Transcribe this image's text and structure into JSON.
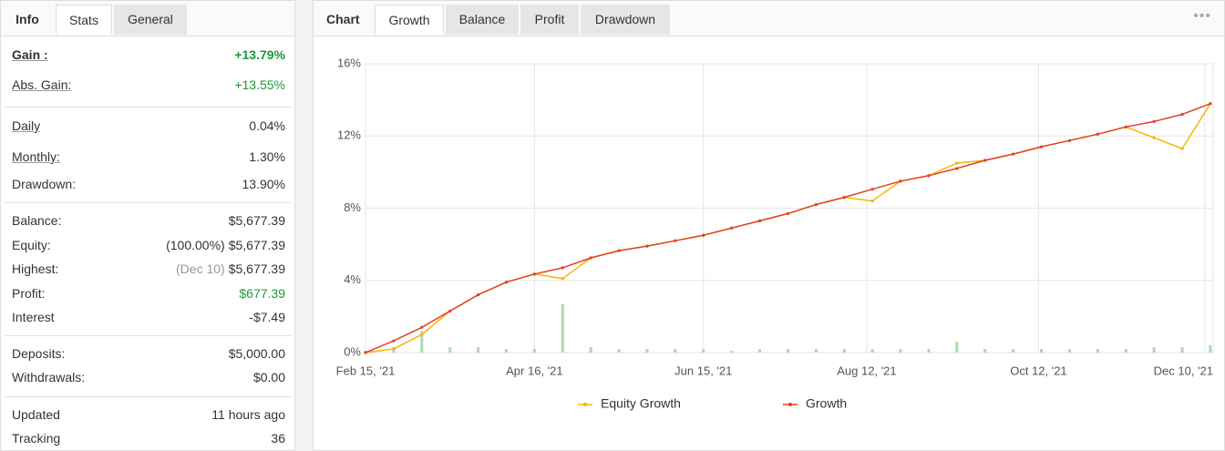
{
  "left_panel": {
    "tabs": [
      "Info",
      "Stats",
      "General"
    ],
    "active_tab": 1,
    "groups": [
      [
        {
          "label": "Gain :",
          "value": "+13.79%",
          "value_color": "#1a9a3a",
          "bold": true,
          "underlined": true
        },
        {
          "label": "Abs. Gain:",
          "value": "+13.55%",
          "value_color": "#1a9a3a",
          "underlined": true
        }
      ],
      [
        {
          "label": "Daily",
          "value": "0.04%",
          "underlined": true
        },
        {
          "label": "Monthly:",
          "value": "1.30%",
          "underlined": true
        },
        {
          "label": "Drawdown:",
          "value": "13.90%"
        }
      ],
      [
        {
          "label": "Balance:",
          "value": "$5,677.39"
        },
        {
          "label": "Equity:",
          "note": "(100.00%)",
          "value": "$5,677.39"
        },
        {
          "label": "Highest:",
          "note": "(Dec 10)",
          "note_color": "#999999",
          "value": "$5,677.39"
        },
        {
          "label": "Profit:",
          "value": "$677.39",
          "value_color": "#1a9a3a"
        },
        {
          "label": "Interest",
          "value": "-$7.49"
        }
      ],
      [
        {
          "label": "Deposits:",
          "value": "$5,000.00"
        },
        {
          "label": "Withdrawals:",
          "value": "$0.00"
        }
      ],
      [
        {
          "label": "Updated",
          "value": "11 hours ago"
        },
        {
          "label": "Tracking",
          "value": "36"
        }
      ]
    ]
  },
  "chart_panel": {
    "title": "Chart",
    "tabs": [
      "Growth",
      "Balance",
      "Profit",
      "Drawdown"
    ],
    "active_tab": 0
  },
  "chart_data": {
    "type": "line",
    "x": [
      "2021-02-15",
      "2021-02-25",
      "2021-03-07",
      "2021-03-17",
      "2021-03-27",
      "2021-04-06",
      "2021-04-16",
      "2021-04-26",
      "2021-05-06",
      "2021-05-16",
      "2021-05-26",
      "2021-06-05",
      "2021-06-15",
      "2021-06-25",
      "2021-07-05",
      "2021-07-15",
      "2021-07-25",
      "2021-08-04",
      "2021-08-14",
      "2021-08-24",
      "2021-09-03",
      "2021-09-13",
      "2021-09-23",
      "2021-10-03",
      "2021-10-13",
      "2021-10-23",
      "2021-11-02",
      "2021-11-12",
      "2021-11-22",
      "2021-12-02",
      "2021-12-12"
    ],
    "xlim": [
      "2021-02-15",
      "2021-12-13"
    ],
    "xticks": [
      {
        "value": "2021-02-15",
        "label": "Feb 15, '21"
      },
      {
        "value": "2021-04-16",
        "label": "Apr 16, '21"
      },
      {
        "value": "2021-06-15",
        "label": "Jun 15, '21"
      },
      {
        "value": "2021-08-12",
        "label": "Aug 12, '21"
      },
      {
        "value": "2021-10-12",
        "label": "Oct 12, '21"
      },
      {
        "value": "2021-12-10",
        "label": "Dec 10, '21"
      }
    ],
    "ylim": [
      0,
      16
    ],
    "yticks": [
      {
        "value": 0,
        "label": "0%"
      },
      {
        "value": 4,
        "label": "4%"
      },
      {
        "value": 8,
        "label": "8%"
      },
      {
        "value": 12,
        "label": "12%"
      },
      {
        "value": 16,
        "label": "16%"
      }
    ],
    "grid": true,
    "series": [
      {
        "name": "Equity Growth",
        "color": "#f2b705",
        "values": [
          0,
          0.2,
          1.0,
          2.3,
          3.2,
          3.9,
          4.35,
          4.1,
          5.25,
          5.65,
          5.9,
          6.2,
          6.5,
          6.9,
          7.3,
          7.7,
          8.2,
          8.6,
          8.4,
          9.5,
          9.8,
          10.5,
          10.65,
          11.0,
          11.4,
          11.75,
          12.1,
          12.5,
          11.9,
          11.3,
          13.79
        ]
      },
      {
        "name": "Growth",
        "color": "#e0412a",
        "values": [
          0,
          0.65,
          1.4,
          2.3,
          3.2,
          3.9,
          4.35,
          4.7,
          5.25,
          5.65,
          5.9,
          6.2,
          6.5,
          6.9,
          7.3,
          7.7,
          8.2,
          8.6,
          9.05,
          9.5,
          9.8,
          10.2,
          10.65,
          11.0,
          11.4,
          11.75,
          12.1,
          12.5,
          12.8,
          13.2,
          13.79
        ]
      }
    ],
    "bars": {
      "color": "#a8dcae",
      "values": [
        0.1,
        0.3,
        1.2,
        0.3,
        0.3,
        0.2,
        0.2,
        2.7,
        0.3,
        0.2,
        0.2,
        0.2,
        0.2,
        0.1,
        0.2,
        0.2,
        0.2,
        0.2,
        0.2,
        0.2,
        0.2,
        0.6,
        0.2,
        0.2,
        0.2,
        0.2,
        0.2,
        0.2,
        0.3,
        0.3,
        0.4
      ]
    },
    "legend": "bottom"
  }
}
